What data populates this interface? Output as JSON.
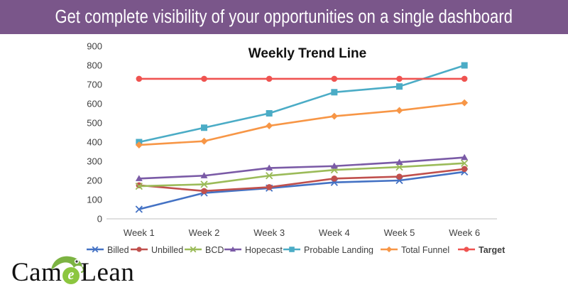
{
  "banner": {
    "title": "Get complete visibility of your opportunities on a single dashboard",
    "background": "#7a568a"
  },
  "logo": {
    "part1": "Cam",
    "mark": "e",
    "part2": "Lean"
  },
  "chart_data": {
    "type": "line",
    "title": "Weekly Trend Line",
    "categories": [
      "Week 1",
      "Week 2",
      "Week 3",
      "Week 4",
      "Week 5",
      "Week 6"
    ],
    "ylim": [
      0,
      900
    ],
    "yticks": [
      0,
      100,
      200,
      300,
      400,
      500,
      600,
      700,
      800,
      900
    ],
    "xlabel": "",
    "ylabel": "",
    "grid": false,
    "legend": "bottom",
    "series": [
      {
        "name": "Billed",
        "color": "#4472c4",
        "marker": "x",
        "values": [
          50,
          135,
          160,
          190,
          200,
          245
        ]
      },
      {
        "name": "Unbilled",
        "color": "#c0504d",
        "marker": "circle",
        "values": [
          175,
          145,
          165,
          210,
          220,
          260
        ]
      },
      {
        "name": "BCD",
        "color": "#9bbb59",
        "marker": "x",
        "values": [
          170,
          180,
          225,
          255,
          270,
          290
        ]
      },
      {
        "name": "Hopecast",
        "color": "#7a5aa6",
        "marker": "triangle",
        "values": [
          210,
          225,
          265,
          275,
          295,
          320
        ]
      },
      {
        "name": "Probable Landing",
        "color": "#4bacc6",
        "marker": "square",
        "values": [
          400,
          475,
          550,
          660,
          690,
          800
        ]
      },
      {
        "name": "Total Funnel",
        "color": "#f79646",
        "marker": "diamond",
        "values": [
          385,
          405,
          485,
          535,
          565,
          605
        ]
      },
      {
        "name": "Target",
        "color": "#ef5350",
        "marker": "circle",
        "values": [
          730,
          730,
          730,
          730,
          730,
          730
        ]
      }
    ]
  }
}
